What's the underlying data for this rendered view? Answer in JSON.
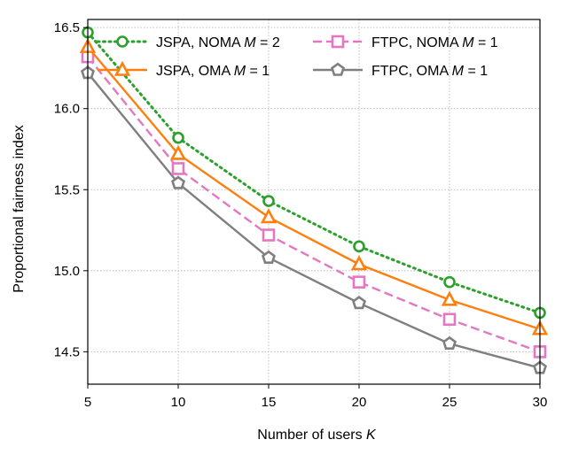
{
  "chart_data": {
    "type": "line",
    "xlabel": "Number of users K",
    "ylabel": "Proportional fairness index",
    "xlim": [
      5,
      30
    ],
    "ylim": [
      14.3,
      16.55
    ],
    "xticks": [
      "5",
      "10",
      "15",
      "20",
      "25",
      "30"
    ],
    "yticks": [
      "14.5",
      "15.0",
      "15.5",
      "16.0",
      "16.5"
    ],
    "grid": true,
    "legend_position": "top",
    "x": [
      5,
      10,
      15,
      20,
      25,
      30
    ],
    "series": [
      {
        "name": "JSPA, NOMA M = 2",
        "values": [
          16.47,
          15.82,
          15.43,
          15.15,
          14.93,
          14.74
        ],
        "color": "#2ca02c",
        "linestyle": "dotted",
        "marker": "circle"
      },
      {
        "name": "JSPA, OMA M = 1",
        "values": [
          16.38,
          15.72,
          15.33,
          15.04,
          14.82,
          14.64
        ],
        "color": "#ff7f0e",
        "linestyle": "solid",
        "marker": "triangle"
      },
      {
        "name": "FTPC, NOMA M = 1",
        "values": [
          16.32,
          15.63,
          15.22,
          14.93,
          14.7,
          14.5
        ],
        "color": "#e377c2",
        "linestyle": "dashed",
        "marker": "square"
      },
      {
        "name": "FTPC, OMA M = 1",
        "values": [
          16.22,
          15.54,
          15.08,
          14.8,
          14.55,
          14.4
        ],
        "color": "#7f7f7f",
        "linestyle": "solid",
        "marker": "pentagon"
      }
    ]
  }
}
